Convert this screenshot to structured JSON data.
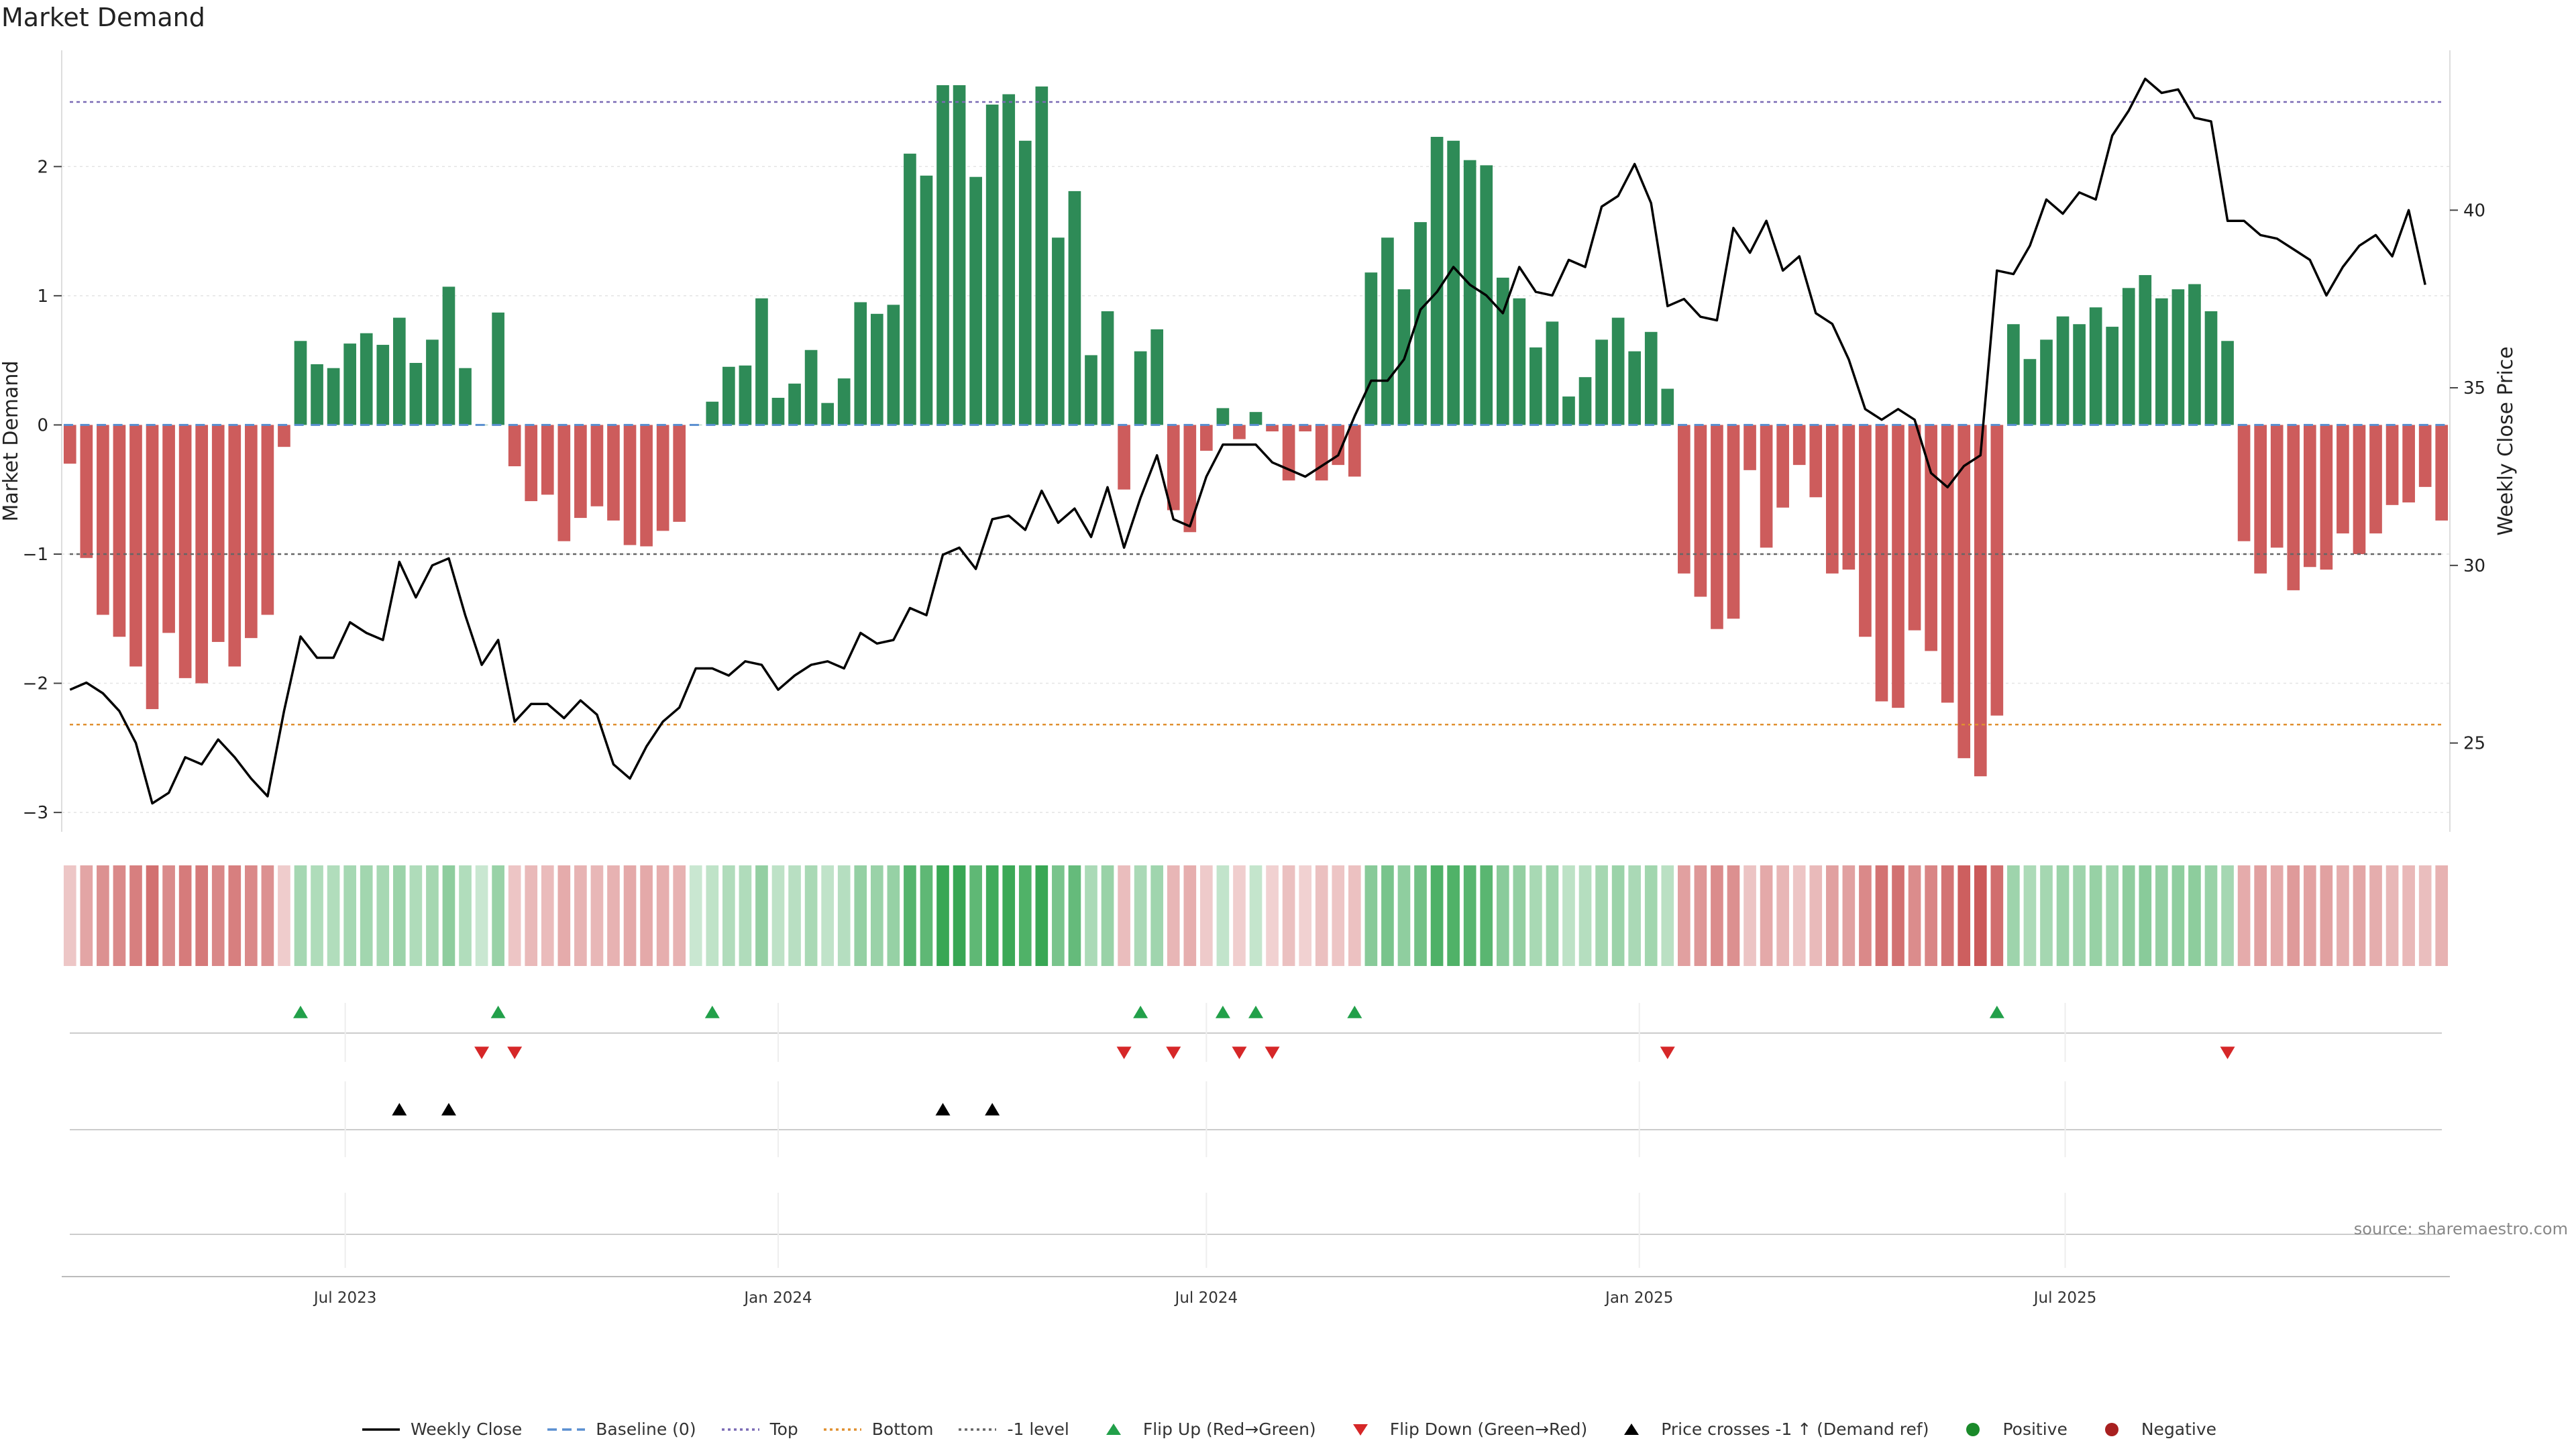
{
  "title": "Market Demand",
  "source": "source: sharemaestro.com",
  "colors": {
    "pos_bar": "#2e8b57",
    "neg_bar": "#cd5c5c",
    "price_line": "#000000",
    "top_line": "#7b6bb5",
    "bottom_line": "#e09030",
    "minus1_line": "#666666",
    "baseline": "#5a8fd0",
    "flip_up": "#22a04a",
    "flip_down": "#d62728",
    "positive": "#1a8a2a",
    "negative": "#a82020"
  },
  "legend": [
    {
      "label": "Weekly Close",
      "type": "line",
      "color": "#000000",
      "dash": ""
    },
    {
      "label": "Baseline (0)",
      "type": "line",
      "color": "#5a8fd0",
      "dash": "14,8"
    },
    {
      "label": "Top",
      "type": "line",
      "color": "#7b6bb5",
      "dash": "4,5"
    },
    {
      "label": "Bottom",
      "type": "line",
      "color": "#e09030",
      "dash": "4,5"
    },
    {
      "label": "-1 level",
      "type": "line",
      "color": "#666666",
      "dash": "4,5"
    },
    {
      "label": "Flip Up (Red→Green)",
      "type": "tri-up",
      "color": "#22a04a"
    },
    {
      "label": "Flip Down (Green→Red)",
      "type": "tri-down",
      "color": "#d62728"
    },
    {
      "label": "Price crosses -1 ↑ (Demand ref)",
      "type": "tri-up",
      "color": "#000000"
    },
    {
      "label": "Positive",
      "type": "dot",
      "color": "#1a8a2a"
    },
    {
      "label": "Negative",
      "type": "dot",
      "color": "#a82020"
    }
  ],
  "chart_data": {
    "type": "bar",
    "start_date": "2023-03-06",
    "frequency": "weekly",
    "left_axis": {
      "label": "Market Demand",
      "ylim": [
        -3.15,
        2.9
      ],
      "ticks": [
        -3,
        -2,
        -1,
        0,
        1,
        2
      ]
    },
    "right_axis": {
      "label": "Weekly Close Price",
      "ylim": [
        22.5,
        44.5
      ],
      "ticks": [
        25,
        30,
        35,
        40
      ]
    },
    "x_ticks": [
      {
        "label": "Jul 2023",
        "date": "2023-07-01"
      },
      {
        "label": "Jan 2024",
        "date": "2024-01-01"
      },
      {
        "label": "Jul 2024",
        "date": "2024-07-01"
      },
      {
        "label": "Jan 2025",
        "date": "2025-01-01"
      },
      {
        "label": "Jul 2025",
        "date": "2025-07-01"
      }
    ],
    "reference_lines": {
      "top": 2.5,
      "bottom": -2.32,
      "minus_one": -1,
      "baseline": 0
    },
    "demand": [
      -0.3,
      -1.03,
      -1.47,
      -1.64,
      -1.87,
      -2.2,
      -1.61,
      -1.96,
      -2.0,
      -1.68,
      -1.87,
      -1.65,
      -1.47,
      -0.17,
      0.65,
      0.47,
      0.44,
      0.63,
      0.71,
      0.62,
      0.83,
      0.48,
      0.66,
      1.07,
      0.44,
      0.0,
      0.87,
      -0.32,
      -0.59,
      -0.54,
      -0.9,
      -0.72,
      -0.63,
      -0.74,
      -0.93,
      -0.94,
      -0.82,
      -0.75,
      0.0,
      0.18,
      0.45,
      0.46,
      0.98,
      0.21,
      0.32,
      0.58,
      0.17,
      0.36,
      0.95,
      0.86,
      0.93,
      2.1,
      1.93,
      2.63,
      2.63,
      1.92,
      2.48,
      2.56,
      2.2,
      2.62,
      1.45,
      1.81,
      0.54,
      0.88,
      -0.5,
      0.57,
      0.74,
      -0.66,
      -0.83,
      -0.2,
      0.13,
      -0.11,
      0.1,
      -0.05,
      -0.43,
      -0.05,
      -0.43,
      -0.31,
      -0.4,
      1.18,
      1.45,
      1.05,
      1.57,
      2.23,
      2.2,
      2.05,
      2.01,
      1.14,
      0.98,
      0.6,
      0.8,
      0.22,
      0.37,
      0.66,
      0.83,
      0.57,
      0.72,
      0.28,
      -1.15,
      -1.33,
      -1.58,
      -1.5,
      -0.35,
      -0.95,
      -0.64,
      -0.31,
      -0.56,
      -1.15,
      -1.12,
      -1.64,
      -2.14,
      -2.19,
      -1.59,
      -1.75,
      -2.15,
      -2.58,
      -2.72,
      -2.25,
      0.78,
      0.51,
      0.66,
      0.84,
      0.78,
      0.91,
      0.76,
      1.06,
      1.16,
      0.98,
      1.05,
      1.09,
      0.88,
      0.65,
      -0.9,
      -1.15,
      -0.95,
      -1.28,
      -1.1,
      -1.12,
      -0.84,
      -1.0,
      -0.84,
      -0.62,
      -0.6,
      -0.48,
      -0.74
    ],
    "price": [
      26.5,
      26.7,
      26.4,
      25.9,
      25.0,
      23.3,
      23.6,
      24.6,
      24.4,
      25.1,
      24.6,
      24.0,
      23.5,
      25.9,
      28.0,
      27.4,
      27.4,
      28.4,
      28.1,
      27.9,
      30.1,
      29.1,
      30.0,
      30.2,
      28.6,
      27.2,
      27.9,
      25.6,
      26.1,
      26.1,
      25.7,
      26.2,
      25.8,
      24.4,
      24.0,
      24.9,
      25.6,
      26.0,
      27.1,
      27.1,
      26.9,
      27.3,
      27.2,
      26.5,
      26.9,
      27.2,
      27.3,
      27.1,
      28.1,
      27.8,
      27.9,
      28.8,
      28.6,
      30.3,
      30.5,
      29.9,
      31.3,
      31.4,
      31.0,
      32.1,
      31.2,
      31.6,
      30.8,
      32.2,
      30.5,
      31.9,
      33.1,
      31.3,
      31.1,
      32.5,
      33.4,
      33.4,
      33.4,
      32.9,
      32.7,
      32.5,
      32.8,
      33.1,
      34.2,
      35.2,
      35.2,
      35.8,
      37.2,
      37.7,
      38.4,
      37.9,
      37.6,
      37.1,
      38.4,
      37.7,
      37.6,
      38.6,
      38.4,
      40.1,
      40.4,
      41.3,
      40.2,
      37.3,
      37.5,
      37.0,
      36.9,
      39.5,
      38.8,
      39.7,
      38.3,
      38.7,
      37.1,
      36.8,
      35.8,
      34.4,
      34.1,
      34.4,
      34.1,
      32.6,
      32.2,
      32.8,
      33.1,
      38.3,
      38.2,
      39.0,
      40.3,
      39.9,
      40.5,
      40.3,
      42.1,
      42.8,
      43.7,
      43.3,
      43.4,
      42.6,
      42.5,
      39.7,
      39.7,
      39.3,
      39.2,
      38.9,
      38.6,
      37.6,
      38.4,
      39.0,
      39.3,
      38.7,
      40.0,
      37.9
    ],
    "flip_up_weeks": [
      14,
      26,
      39,
      65,
      70,
      72,
      78,
      117
    ],
    "flip_down_weeks": [
      25,
      27,
      64,
      67,
      71,
      73,
      97,
      131
    ],
    "price_cross_weeks": [
      20,
      23,
      53,
      56
    ]
  }
}
